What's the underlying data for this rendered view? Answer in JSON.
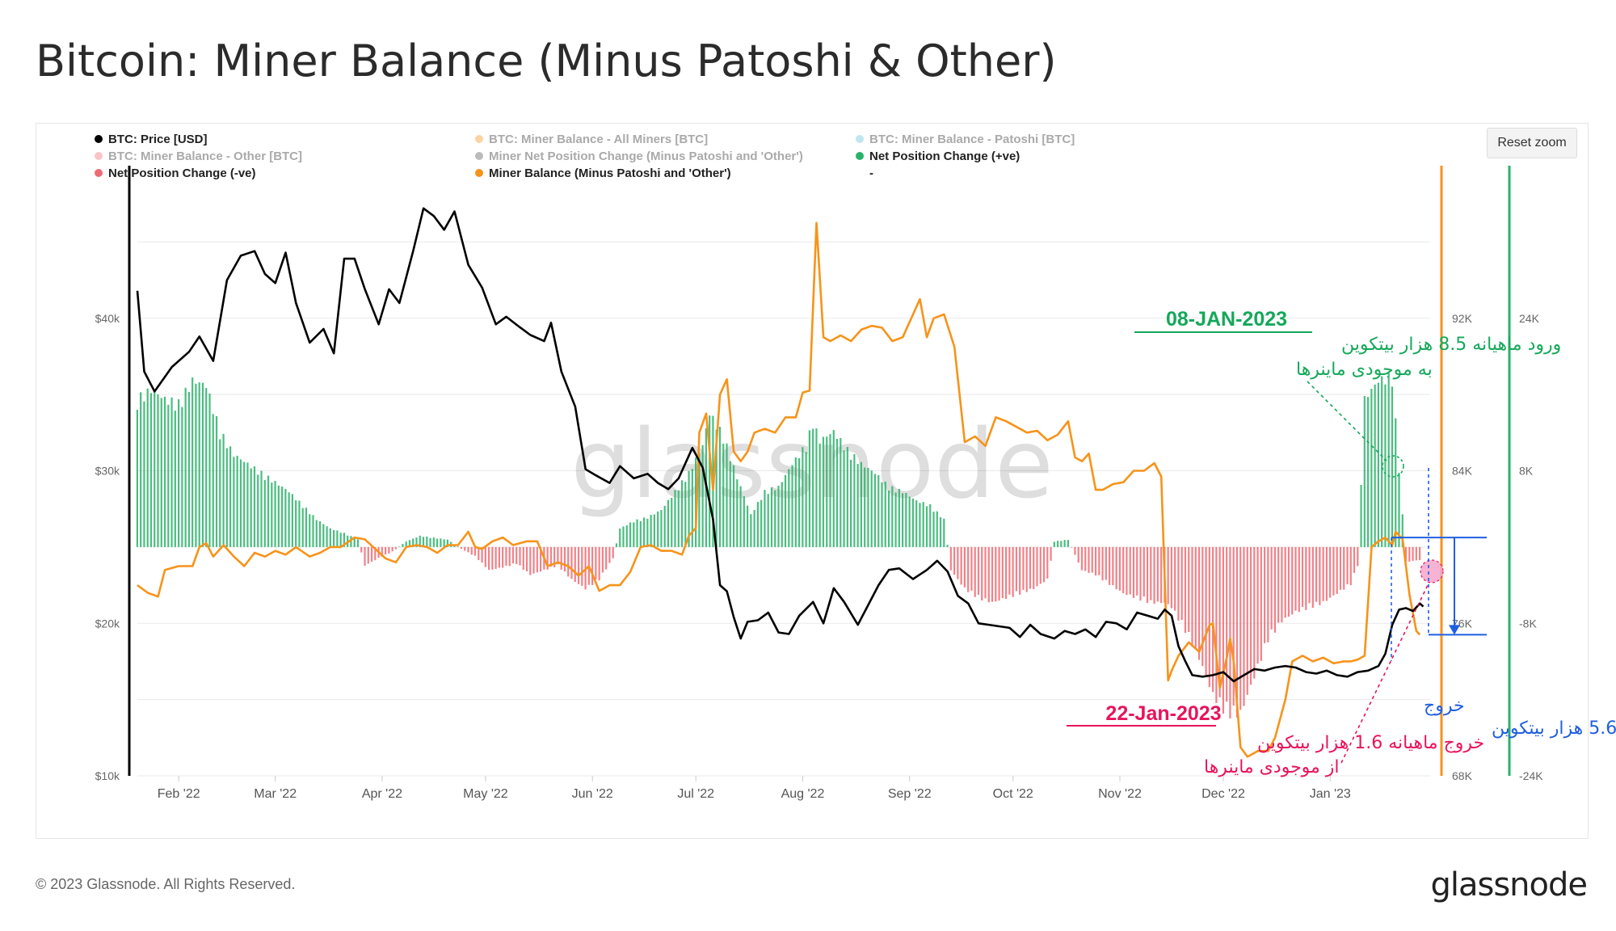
{
  "header": {
    "title": "Bitcoin: Miner Balance (Minus Patoshi & Other)"
  },
  "toolbar": {
    "reset_zoom_label": "Reset zoom"
  },
  "footer": {
    "copyright": "© 2023 Glassnode. All Rights Reserved.",
    "logo_text": "glassnode"
  },
  "watermark": "glassnode",
  "colors": {
    "price": "#000000",
    "miner_balance": "#f7931a",
    "positive": "#2ab26a",
    "negative": "#ef6b73",
    "annot_green": "#14a85a",
    "annot_pink": "#e8145c",
    "annot_blue": "#1f5fe0"
  },
  "chart_data": {
    "type": "line",
    "title": "Bitcoin: Miner Balance (Minus Patoshi & Other)",
    "legend": [
      {
        "label": "BTC: Price [USD]",
        "color": "#000000",
        "active": true
      },
      {
        "label": "BTC: Miner Balance - All Miners [BTC]",
        "color": "#f7931a",
        "active": false
      },
      {
        "label": "BTC: Miner Balance - Patoshi [BTC]",
        "color": "#61c0d6",
        "active": false
      },
      {
        "label": "BTC: Miner Balance - Other [BTC]",
        "color": "#ef6b73",
        "active": false
      },
      {
        "label": "Miner Net Position Change (Minus Patoshi and 'Other')",
        "color": "#555555",
        "active": false
      },
      {
        "label": "Net Position Change (+ve)",
        "color": "#2ab26a",
        "active": true
      },
      {
        "label": "Net Position Change (-ve)",
        "color": "#ef6b73",
        "active": true
      },
      {
        "label": "Miner Balance (Minus Patoshi and 'Other')",
        "color": "#f7931a",
        "active": true
      },
      {
        "label": "-",
        "color": "#ffffff",
        "active": true
      }
    ],
    "x_range": [
      "2022-01-20",
      "2023-01-24"
    ],
    "x_ticks": [
      "Feb '22",
      "Mar '22",
      "Apr '22",
      "May '22",
      "Jun '22",
      "Jul '22",
      "Aug '22",
      "Sep '22",
      "Oct '22",
      "Nov '22",
      "Dec '22",
      "Jan '23"
    ],
    "y_axes": {
      "price": {
        "ticks": [
          "$10k",
          "$20k",
          "$30k",
          "$40k"
        ],
        "range": [
          10000,
          50000
        ],
        "scale": "linear"
      },
      "miner_balance": {
        "ticks": [
          "68K",
          "76K",
          "84K",
          "92K"
        ],
        "range": [
          68000,
          100000
        ]
      },
      "net_position": {
        "ticks": [
          "-24K",
          "-8K",
          "8K",
          "24K"
        ],
        "range": [
          -24000,
          40000
        ]
      }
    },
    "price_series": [
      [
        0,
        41800
      ],
      [
        2,
        36500
      ],
      [
        5,
        35200
      ],
      [
        10,
        36800
      ],
      [
        15,
        37800
      ],
      [
        18,
        38800
      ],
      [
        22,
        37200
      ],
      [
        26,
        42500
      ],
      [
        30,
        44100
      ],
      [
        34,
        44400
      ],
      [
        37,
        42900
      ],
      [
        40,
        42300
      ],
      [
        43,
        44300
      ],
      [
        46,
        41000
      ],
      [
        50,
        38400
      ],
      [
        54,
        39300
      ],
      [
        57,
        37700
      ],
      [
        60,
        43900
      ],
      [
        63,
        43900
      ],
      [
        66,
        41900
      ],
      [
        70,
        39600
      ],
      [
        73,
        41900
      ],
      [
        76,
        41000
      ],
      [
        80,
        44400
      ],
      [
        83,
        47200
      ],
      [
        86,
        46700
      ],
      [
        89,
        45800
      ],
      [
        92,
        47000
      ],
      [
        96,
        43500
      ],
      [
        100,
        42000
      ],
      [
        104,
        39600
      ],
      [
        107,
        40100
      ],
      [
        111,
        39400
      ],
      [
        114,
        38900
      ],
      [
        118,
        38500
      ],
      [
        120,
        39700
      ],
      [
        123,
        36500
      ],
      [
        127,
        34200
      ],
      [
        130,
        30100
      ],
      [
        133,
        29700
      ],
      [
        137,
        29200
      ],
      [
        140,
        30300
      ],
      [
        144,
        29500
      ],
      [
        148,
        29800
      ],
      [
        151,
        29200
      ],
      [
        154,
        28800
      ],
      [
        157,
        29500
      ],
      [
        161,
        31500
      ],
      [
        164,
        30200
      ],
      [
        167,
        26800
      ],
      [
        169,
        22500
      ],
      [
        171,
        22100
      ],
      [
        173,
        20400
      ],
      [
        175,
        19000
      ],
      [
        177,
        20100
      ],
      [
        180,
        20200
      ],
      [
        183,
        20700
      ],
      [
        186,
        19400
      ],
      [
        189,
        19300
      ],
      [
        192,
        20500
      ],
      [
        196,
        21400
      ],
      [
        199,
        20000
      ],
      [
        202,
        22300
      ],
      [
        205,
        21400
      ],
      [
        209,
        19900
      ],
      [
        212,
        21200
      ],
      [
        215,
        22500
      ],
      [
        218,
        23500
      ],
      [
        221,
        23600
      ],
      [
        225,
        22900
      ],
      [
        229,
        23500
      ],
      [
        232,
        24100
      ],
      [
        235,
        23400
      ],
      [
        238,
        21800
      ],
      [
        241,
        21300
      ],
      [
        244,
        20000
      ],
      [
        247,
        19900
      ],
      [
        250,
        19800
      ],
      [
        253,
        19700
      ],
      [
        256,
        19100
      ],
      [
        259,
        19900
      ],
      [
        262,
        19300
      ],
      [
        266,
        19000
      ],
      [
        269,
        19500
      ],
      [
        272,
        19300
      ],
      [
        275,
        19600
      ],
      [
        278,
        19100
      ],
      [
        281,
        20100
      ],
      [
        284,
        20000
      ],
      [
        287,
        19600
      ],
      [
        290,
        20700
      ],
      [
        293,
        20500
      ],
      [
        296,
        20300
      ],
      [
        298,
        20900
      ],
      [
        300,
        20500
      ],
      [
        302,
        18500
      ],
      [
        304,
        17500
      ],
      [
        306,
        16600
      ],
      [
        309,
        16500
      ],
      [
        312,
        16600
      ],
      [
        315,
        16800
      ],
      [
        318,
        16200
      ],
      [
        321,
        16600
      ],
      [
        324,
        17000
      ],
      [
        327,
        16900
      ],
      [
        330,
        17100
      ],
      [
        333,
        17200
      ],
      [
        336,
        17100
      ],
      [
        339,
        16800
      ],
      [
        342,
        16700
      ],
      [
        345,
        16900
      ],
      [
        348,
        16600
      ],
      [
        351,
        16500
      ],
      [
        354,
        16800
      ],
      [
        357,
        16900
      ],
      [
        360,
        17200
      ],
      [
        362,
        18000
      ],
      [
        364,
        19900
      ],
      [
        366,
        20900
      ],
      [
        368,
        21000
      ],
      [
        370,
        20800
      ],
      [
        372,
        21300
      ],
      [
        373,
        21100
      ]
    ],
    "miner_balance_series": [
      [
        0,
        78000
      ],
      [
        3,
        77600
      ],
      [
        6,
        77400
      ],
      [
        8,
        78800
      ],
      [
        12,
        79000
      ],
      [
        16,
        79000
      ],
      [
        18,
        80000
      ],
      [
        20,
        80200
      ],
      [
        22,
        79500
      ],
      [
        25,
        80100
      ],
      [
        28,
        79500
      ],
      [
        31,
        79000
      ],
      [
        34,
        79700
      ],
      [
        37,
        79500
      ],
      [
        40,
        79800
      ],
      [
        43,
        79600
      ],
      [
        46,
        80000
      ],
      [
        50,
        79500
      ],
      [
        53,
        79700
      ],
      [
        56,
        80000
      ],
      [
        59,
        80000
      ],
      [
        63,
        80500
      ],
      [
        66,
        80400
      ],
      [
        69,
        79900
      ],
      [
        72,
        79400
      ],
      [
        75,
        79200
      ],
      [
        78,
        80000
      ],
      [
        81,
        80100
      ],
      [
        84,
        80000
      ],
      [
        87,
        79700
      ],
      [
        90,
        80100
      ],
      [
        93,
        80100
      ],
      [
        96,
        80800
      ],
      [
        98,
        80000
      ],
      [
        100,
        79900
      ],
      [
        103,
        80300
      ],
      [
        106,
        80500
      ],
      [
        109,
        80100
      ],
      [
        113,
        80300
      ],
      [
        116,
        80300
      ],
      [
        119,
        79000
      ],
      [
        122,
        79200
      ],
      [
        125,
        79000
      ],
      [
        128,
        78500
      ],
      [
        131,
        79000
      ],
      [
        134,
        77700
      ],
      [
        137,
        78000
      ],
      [
        140,
        78000
      ],
      [
        143,
        78700
      ],
      [
        146,
        80000
      ],
      [
        149,
        80100
      ],
      [
        152,
        79800
      ],
      [
        155,
        79800
      ],
      [
        158,
        79600
      ],
      [
        160,
        80600
      ],
      [
        162,
        81000
      ],
      [
        163,
        86000
      ],
      [
        165,
        87000
      ],
      [
        167,
        83000
      ],
      [
        169,
        88000
      ],
      [
        171,
        88800
      ],
      [
        173,
        85000
      ],
      [
        175,
        84500
      ],
      [
        177,
        85000
      ],
      [
        179,
        86000
      ],
      [
        182,
        86200
      ],
      [
        185,
        86000
      ],
      [
        188,
        86800
      ],
      [
        191,
        86800
      ],
      [
        193,
        88100
      ],
      [
        195,
        88200
      ],
      [
        197,
        97000
      ],
      [
        199,
        91000
      ],
      [
        201,
        90800
      ],
      [
        204,
        91100
      ],
      [
        207,
        90800
      ],
      [
        210,
        91400
      ],
      [
        213,
        91600
      ],
      [
        216,
        91500
      ],
      [
        219,
        90800
      ],
      [
        222,
        91000
      ],
      [
        225,
        92200
      ],
      [
        227,
        93000
      ],
      [
        229,
        91000
      ],
      [
        231,
        92000
      ],
      [
        234,
        92200
      ],
      [
        237,
        90500
      ],
      [
        240,
        85500
      ],
      [
        243,
        85800
      ],
      [
        246,
        85300
      ],
      [
        249,
        86800
      ],
      [
        252,
        86600
      ],
      [
        255,
        86300
      ],
      [
        258,
        86000
      ],
      [
        261,
        86100
      ],
      [
        264,
        85600
      ],
      [
        267,
        85900
      ],
      [
        270,
        86600
      ],
      [
        272,
        84700
      ],
      [
        274,
        84500
      ],
      [
        276,
        84900
      ],
      [
        278,
        83000
      ],
      [
        280,
        83000
      ],
      [
        283,
        83300
      ],
      [
        286,
        83400
      ],
      [
        289,
        84000
      ],
      [
        292,
        84000
      ],
      [
        295,
        84400
      ],
      [
        297,
        83700
      ],
      [
        299,
        73000
      ],
      [
        300,
        73500
      ],
      [
        302,
        74300
      ],
      [
        305,
        75000
      ],
      [
        308,
        74500
      ],
      [
        311,
        75900
      ],
      [
        312,
        76000
      ],
      [
        314,
        72600
      ],
      [
        316,
        74200
      ],
      [
        317,
        75200
      ],
      [
        318,
        74000
      ],
      [
        320,
        69500
      ],
      [
        322,
        69000
      ],
      [
        325,
        69300
      ],
      [
        328,
        69300
      ],
      [
        330,
        70000
      ],
      [
        333,
        72000
      ],
      [
        335,
        74000
      ],
      [
        338,
        74300
      ],
      [
        341,
        74000
      ],
      [
        344,
        74200
      ],
      [
        347,
        73900
      ],
      [
        350,
        74000
      ],
      [
        352,
        74000
      ],
      [
        354,
        74100
      ],
      [
        356,
        74300
      ],
      [
        358,
        80000
      ],
      [
        360,
        80300
      ],
      [
        362,
        80500
      ],
      [
        364,
        80100
      ],
      [
        365,
        80800
      ],
      [
        367,
        80400
      ],
      [
        369,
        77500
      ],
      [
        371,
        75600
      ],
      [
        372,
        75400
      ]
    ],
    "net_change_series": [
      [
        0,
        16000
      ],
      [
        4,
        17000
      ],
      [
        8,
        16000
      ],
      [
        12,
        15500
      ],
      [
        16,
        18000
      ],
      [
        20,
        17500
      ],
      [
        24,
        12500
      ],
      [
        28,
        10000
      ],
      [
        32,
        9000
      ],
      [
        36,
        8000
      ],
      [
        40,
        7000
      ],
      [
        44,
        6000
      ],
      [
        48,
        4500
      ],
      [
        52,
        3000
      ],
      [
        56,
        2000
      ],
      [
        60,
        1500
      ],
      [
        64,
        800
      ],
      [
        66,
        -2000
      ],
      [
        70,
        -1200
      ],
      [
        74,
        -500
      ],
      [
        78,
        600
      ],
      [
        82,
        1200
      ],
      [
        86,
        1000
      ],
      [
        90,
        800
      ],
      [
        94,
        -200
      ],
      [
        98,
        -1000
      ],
      [
        102,
        -2500
      ],
      [
        106,
        -2200
      ],
      [
        110,
        -1800
      ],
      [
        114,
        -3000
      ],
      [
        118,
        -2500
      ],
      [
        122,
        -2000
      ],
      [
        126,
        -3500
      ],
      [
        130,
        -4500
      ],
      [
        134,
        -3500
      ],
      [
        138,
        -1200
      ],
      [
        140,
        2000
      ],
      [
        144,
        2800
      ],
      [
        148,
        3200
      ],
      [
        152,
        4000
      ],
      [
        156,
        6000
      ],
      [
        160,
        8000
      ],
      [
        164,
        11000
      ],
      [
        166,
        14500
      ],
      [
        170,
        12000
      ],
      [
        174,
        7500
      ],
      [
        178,
        3500
      ],
      [
        182,
        6000
      ],
      [
        186,
        6500
      ],
      [
        190,
        9000
      ],
      [
        194,
        11000
      ],
      [
        196,
        13500
      ],
      [
        198,
        11500
      ],
      [
        202,
        12500
      ],
      [
        206,
        10500
      ],
      [
        210,
        9000
      ],
      [
        214,
        8000
      ],
      [
        218,
        6500
      ],
      [
        222,
        6000
      ],
      [
        226,
        5000
      ],
      [
        230,
        4500
      ],
      [
        234,
        3000
      ],
      [
        236,
        -2500
      ],
      [
        240,
        -4500
      ],
      [
        244,
        -5500
      ],
      [
        248,
        -6000
      ],
      [
        252,
        -5500
      ],
      [
        256,
        -5000
      ],
      [
        260,
        -4500
      ],
      [
        264,
        -3500
      ],
      [
        266,
        600
      ],
      [
        270,
        800
      ],
      [
        274,
        -2500
      ],
      [
        278,
        -3000
      ],
      [
        282,
        -4000
      ],
      [
        286,
        -5000
      ],
      [
        290,
        -5500
      ],
      [
        294,
        -6000
      ],
      [
        298,
        -6000
      ],
      [
        300,
        -6500
      ],
      [
        304,
        -9000
      ],
      [
        308,
        -12000
      ],
      [
        312,
        -16000
      ],
      [
        316,
        -18000
      ],
      [
        320,
        -18000
      ],
      [
        324,
        -14000
      ],
      [
        328,
        -10000
      ],
      [
        332,
        -8000
      ],
      [
        336,
        -7000
      ],
      [
        340,
        -6500
      ],
      [
        344,
        -6000
      ],
      [
        348,
        -5000
      ],
      [
        352,
        -4000
      ],
      [
        354,
        -2000
      ],
      [
        356,
        16000
      ],
      [
        360,
        18000
      ],
      [
        364,
        18500
      ],
      [
        366,
        8500
      ],
      [
        368,
        -1600
      ],
      [
        372,
        -1400
      ]
    ],
    "annotations": [
      {
        "date": "08-JAN-2023",
        "line1": "ورود ماهیانه 8.5 هزار بیتکوین",
        "line2": "به موجودی ماینرها",
        "color": "#14a85a",
        "month_change": 8500
      },
      {
        "date": "22-Jan-2023",
        "line1": "خروج ماهیانه 1.6 هزار بیتکوین",
        "line2": "از موجودی ماینرها",
        "color": "#e8145c",
        "month_change": -1600
      },
      {
        "line1": "خروج",
        "line2": "5.6 هزار بیتکوین",
        "color": "#1f5fe0",
        "balance_drop": 5600
      }
    ]
  }
}
